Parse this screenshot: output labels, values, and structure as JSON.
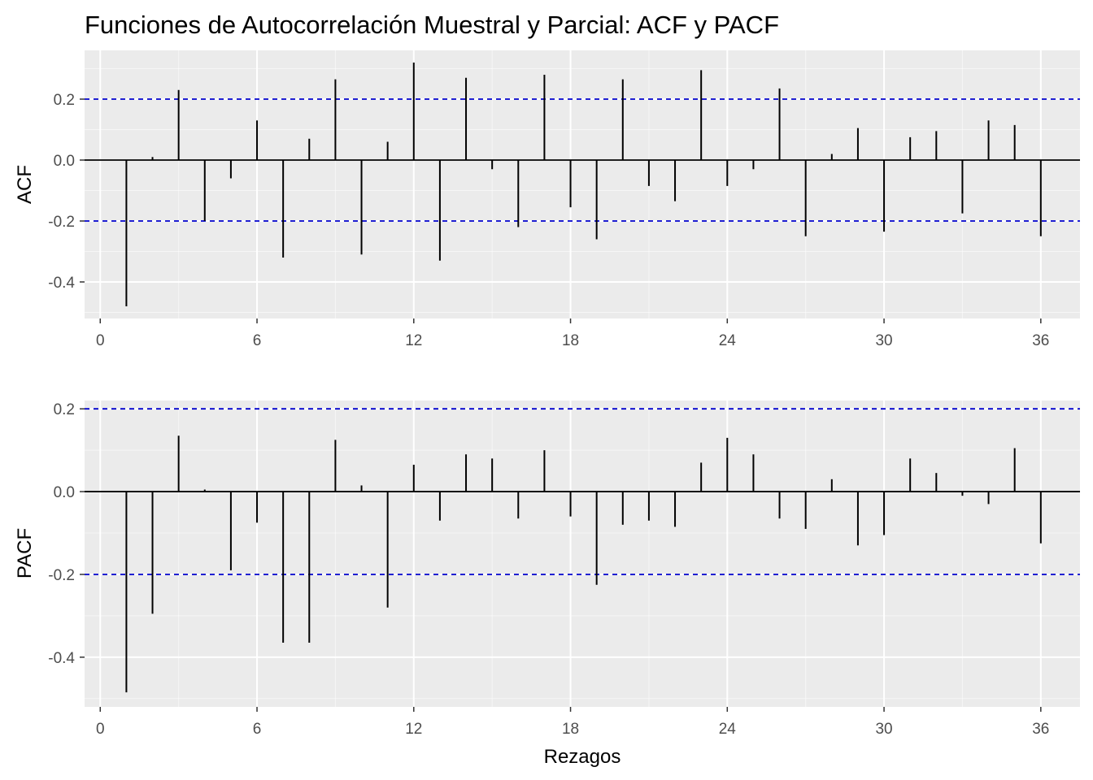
{
  "title": "Funciones de Autocorrelación Muestral y Parcial: ACF y PACF",
  "xlabel": "Rezagos",
  "colors": {
    "panel_bg": "#ebebeb",
    "grid": "#ffffff",
    "bar": "#000000",
    "zero_line": "#000000",
    "confidence": "#0000cc"
  },
  "chart_data": [
    {
      "type": "bar",
      "subtype": "lollipop-spikes",
      "ylabel": "ACF",
      "x": [
        1,
        2,
        3,
        4,
        5,
        6,
        7,
        8,
        9,
        10,
        11,
        12,
        13,
        14,
        15,
        16,
        17,
        18,
        19,
        20,
        21,
        22,
        23,
        24,
        25,
        26,
        27,
        28,
        29,
        30,
        31,
        32,
        33,
        34,
        35,
        36
      ],
      "values": [
        -0.48,
        0.01,
        0.23,
        -0.2,
        -0.06,
        0.13,
        -0.32,
        0.07,
        0.265,
        -0.31,
        0.06,
        0.32,
        -0.33,
        0.27,
        -0.03,
        -0.22,
        0.28,
        -0.155,
        -0.26,
        0.265,
        -0.085,
        -0.135,
        0.295,
        -0.085,
        -0.03,
        0.235,
        -0.25,
        0.02,
        0.105,
        -0.235,
        0.075,
        0.095,
        -0.175,
        0.13,
        0.115,
        -0.25
      ],
      "confidence_bands": [
        0.2,
        -0.2
      ],
      "xlim": [
        -0.6,
        37.5
      ],
      "ylim": [
        -0.52,
        0.36
      ],
      "x_ticks": [
        "0",
        "6",
        "12",
        "18",
        "24",
        "30",
        "36"
      ],
      "y_ticks": [
        "0.2",
        "0.0",
        "-0.2",
        "-0.4"
      ],
      "grid": true
    },
    {
      "type": "bar",
      "subtype": "lollipop-spikes",
      "ylabel": "PACF",
      "x": [
        1,
        2,
        3,
        4,
        5,
        6,
        7,
        8,
        9,
        10,
        11,
        12,
        13,
        14,
        15,
        16,
        17,
        18,
        19,
        20,
        21,
        22,
        23,
        24,
        25,
        26,
        27,
        28,
        29,
        30,
        31,
        32,
        33,
        34,
        35,
        36
      ],
      "values": [
        -0.485,
        -0.295,
        0.135,
        0.005,
        -0.19,
        -0.075,
        -0.365,
        -0.365,
        0.125,
        0.015,
        -0.28,
        0.065,
        -0.07,
        0.09,
        0.08,
        -0.065,
        0.1,
        -0.06,
        -0.225,
        -0.08,
        -0.07,
        -0.085,
        0.07,
        0.13,
        0.09,
        -0.065,
        -0.09,
        0.03,
        -0.13,
        -0.105,
        0.08,
        0.045,
        -0.01,
        -0.03,
        0.105,
        -0.125
      ],
      "confidence_bands": [
        0.2,
        -0.2
      ],
      "xlim": [
        -0.6,
        37.5
      ],
      "ylim": [
        -0.52,
        0.22
      ],
      "x_ticks": [
        "0",
        "6",
        "12",
        "18",
        "24",
        "30",
        "36"
      ],
      "y_ticks": [
        "0.2",
        "0.0",
        "-0.2",
        "-0.4"
      ],
      "grid": true
    }
  ]
}
